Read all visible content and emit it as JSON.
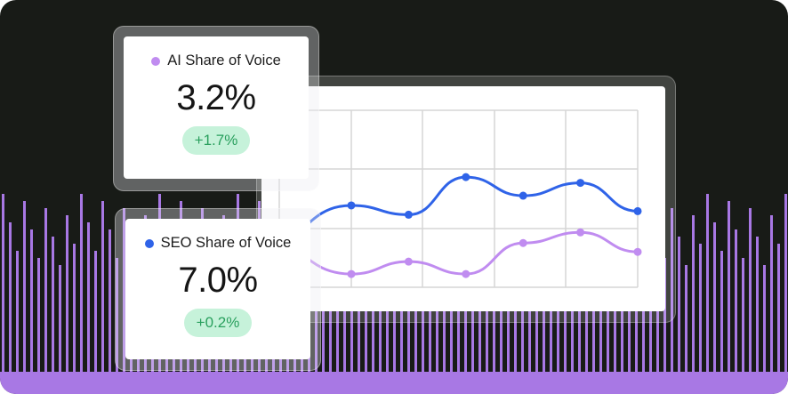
{
  "cards": {
    "ai": {
      "label": "AI Share of Voice",
      "value": "3.2%",
      "change": "+1.7%",
      "dot_color": "#c08cf0"
    },
    "seo": {
      "label": "SEO Share of Voice",
      "value": "7.0%",
      "change": "+0.2%",
      "dot_color": "#2f63e8"
    }
  },
  "colors": {
    "background": "#181b17",
    "stripes": "#a878e4",
    "badge_bg": "#c6f2da",
    "badge_text": "#2aa05e",
    "grid": "#d6d6d6"
  },
  "chart_data": {
    "type": "line",
    "grid": true,
    "x": [
      1,
      2,
      3,
      4,
      5,
      6
    ],
    "ylim": [
      0,
      4
    ],
    "series": [
      {
        "name": "SEO Share of Voice",
        "color": "#2f63e8",
        "values": [
          1.85,
          1.64,
          2.49,
          2.07,
          2.36,
          1.72
        ]
      },
      {
        "name": "AI Share of Voice",
        "color": "#c08cf0",
        "values": [
          0.3,
          0.58,
          0.3,
          1.0,
          1.24,
          0.8
        ]
      }
    ]
  }
}
